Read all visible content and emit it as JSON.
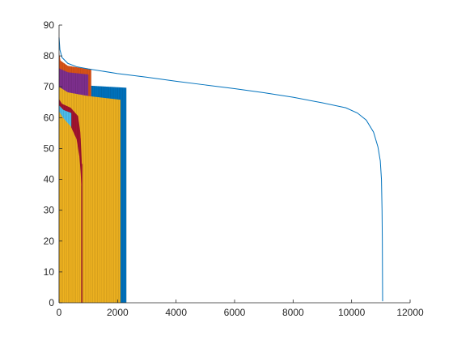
{
  "chart_data": {
    "type": "line",
    "title": "",
    "xlabel": "",
    "ylabel": "",
    "xlim": [
      0,
      12000
    ],
    "ylim": [
      0,
      90
    ],
    "xticks": [
      0,
      2000,
      4000,
      6000,
      8000,
      10000,
      12000
    ],
    "xtick_labels": [
      "0",
      "2000",
      "4000",
      "6000",
      "8000",
      "10000",
      "12000"
    ],
    "yticks": [
      0,
      10,
      20,
      30,
      40,
      50,
      60,
      70,
      80,
      90
    ],
    "ytick_labels": [
      "0",
      "10",
      "20",
      "30",
      "40",
      "50",
      "60",
      "70",
      "80",
      "90"
    ],
    "grid": false,
    "legend": "none",
    "series": [
      {
        "color": "#0072BD",
        "style": "line",
        "points": [
          [
            0,
            86
          ],
          [
            30,
            82
          ],
          [
            100,
            79.5
          ],
          [
            300,
            77.6
          ],
          [
            600,
            76.5
          ],
          [
            1000,
            75.8
          ],
          [
            2000,
            74.3
          ],
          [
            3000,
            73.1
          ],
          [
            4000,
            71.8
          ],
          [
            5000,
            70.6
          ],
          [
            6000,
            69.4
          ],
          [
            7000,
            68.1
          ],
          [
            8000,
            66.6
          ],
          [
            9000,
            64.8
          ],
          [
            9800,
            63.2
          ],
          [
            10200,
            61.5
          ],
          [
            10500,
            59.2
          ],
          [
            10750,
            55.3
          ],
          [
            10900,
            50.5
          ],
          [
            10980,
            46.0
          ],
          [
            11020,
            40.0
          ],
          [
            11040,
            30.0
          ],
          [
            11050,
            20.0
          ],
          [
            11055,
            10.0
          ],
          [
            11060,
            0.5
          ]
        ]
      },
      {
        "color": "#0072BD",
        "style": "filled-bars",
        "x_end": 2300,
        "level_points": [
          [
            0,
            72.5
          ],
          [
            300,
            71.3
          ],
          [
            1000,
            70.4
          ],
          [
            2300,
            69.7
          ]
        ]
      },
      {
        "color": "#D95319",
        "style": "filled-bars",
        "x_end": 1100,
        "level_points": [
          [
            0,
            81
          ],
          [
            50,
            78.5
          ],
          [
            300,
            76.8
          ],
          [
            1100,
            75.6
          ]
        ]
      },
      {
        "color": "#7E2F8E",
        "style": "filled-bars",
        "x_end": 1000,
        "level_points": [
          [
            0,
            76
          ],
          [
            300,
            74.7
          ],
          [
            1000,
            74.0
          ]
        ]
      },
      {
        "color": "#EDB120",
        "style": "filled-bars",
        "x_end": 2100,
        "level_points": [
          [
            0,
            70
          ],
          [
            300,
            68.2
          ],
          [
            1000,
            67.0
          ],
          [
            2100,
            65.8
          ]
        ]
      },
      {
        "color": "#A2142F",
        "style": "filled-bars",
        "x_end": 800,
        "level_points": [
          [
            0,
            66
          ],
          [
            100,
            64.5
          ],
          [
            400,
            63.2
          ],
          [
            650,
            60.5
          ],
          [
            730,
            55
          ],
          [
            760,
            49
          ],
          [
            780,
            45
          ]
        ]
      },
      {
        "color": "#4DBEEE",
        "style": "filled-bars",
        "x_end": 420,
        "level_points": [
          [
            0,
            64
          ],
          [
            150,
            62.5
          ],
          [
            420,
            61.5
          ]
        ]
      },
      {
        "color": "#EDB120",
        "style": "filled-bars",
        "x_end": 760,
        "level_points": [
          [
            0,
            62
          ],
          [
            150,
            59.8
          ],
          [
            400,
            57.2
          ],
          [
            600,
            53
          ],
          [
            700,
            47
          ],
          [
            740,
            42
          ],
          [
            760,
            38
          ]
        ]
      }
    ]
  }
}
